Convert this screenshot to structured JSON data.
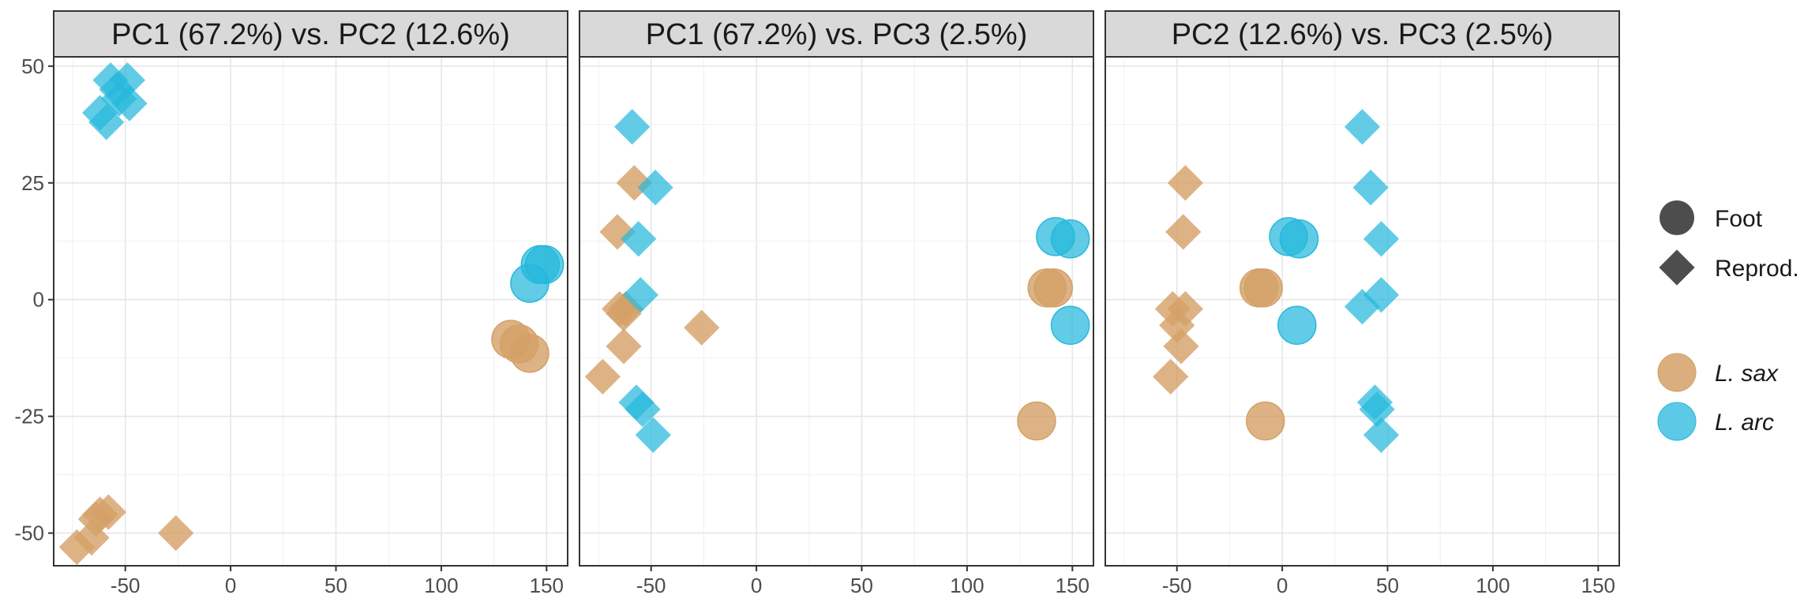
{
  "colors": {
    "L_sax": "#D4A066",
    "L_arc": "#26B8DD",
    "shape_key": "#4d4d4d"
  },
  "legend": {
    "shape": [
      {
        "label": "Foot",
        "shape": "circle"
      },
      {
        "label": "Reprod.",
        "shape": "diamond"
      }
    ],
    "species": [
      {
        "label": "L. sax",
        "color_key": "L_sax"
      },
      {
        "label": "L. arc",
        "color_key": "L_arc"
      }
    ]
  },
  "chart_data": [
    {
      "type": "scatter",
      "title": "PC1 (67.2%) vs. PC2 (12.6%)",
      "xlim": [
        -84,
        160
      ],
      "ylim": [
        -57,
        52
      ],
      "xticks": [
        -50,
        0,
        50,
        100,
        150
      ],
      "yticks": [
        -50,
        -25,
        0,
        25,
        50
      ],
      "grid": true,
      "series": [
        {
          "name": "L. sax",
          "tissue": "Foot",
          "points": [
            [
              133,
              -8.5
            ],
            [
              137,
              -9.5
            ],
            [
              142,
              -11.5
            ]
          ]
        },
        {
          "name": "L. sax",
          "tissue": "Reprod.",
          "points": [
            [
              -26,
              -50
            ],
            [
              -58,
              -45.5
            ],
            [
              -62,
              -46
            ],
            [
              -64,
              -47
            ],
            [
              -66,
              -51
            ],
            [
              -73,
              -53
            ]
          ]
        },
        {
          "name": "L. arc",
          "tissue": "Foot",
          "points": [
            [
              142,
              3.5
            ],
            [
              147,
              7.5
            ],
            [
              149,
              7.5
            ]
          ]
        },
        {
          "name": "L. arc",
          "tissue": "Reprod.",
          "points": [
            [
              -57,
              47
            ],
            [
              -54,
              45
            ],
            [
              -49,
              47
            ],
            [
              -53,
              43
            ],
            [
              -48,
              42
            ],
            [
              -59,
              38
            ],
            [
              -62,
              40
            ]
          ]
        }
      ]
    },
    {
      "type": "scatter",
      "title": "PC1 (67.2%) vs. PC3 (2.5%)",
      "xlim": [
        -84,
        160
      ],
      "ylim": [
        -57,
        52
      ],
      "xticks": [
        -50,
        0,
        50,
        100,
        150
      ],
      "yticks": [
        -50,
        -25,
        0,
        25,
        50
      ],
      "grid": true,
      "series": [
        {
          "name": "L. sax",
          "tissue": "Foot",
          "points": [
            [
              138,
              2.5
            ],
            [
              141,
              2.5
            ],
            [
              133,
              -26
            ]
          ]
        },
        {
          "name": "L. sax",
          "tissue": "Reprod.",
          "points": [
            [
              -58,
              25
            ],
            [
              -66,
              14.5
            ],
            [
              -65,
              -2
            ],
            [
              -62,
              -2
            ],
            [
              -63,
              -3
            ],
            [
              -26,
              -6
            ],
            [
              -63,
              -10
            ],
            [
              -73,
              -16.5
            ]
          ]
        },
        {
          "name": "L. arc",
          "tissue": "Foot",
          "points": [
            [
              142,
              13.5
            ],
            [
              149,
              13
            ],
            [
              149,
              -5.5
            ]
          ]
        },
        {
          "name": "L. arc",
          "tissue": "Reprod.",
          "points": [
            [
              -59,
              37
            ],
            [
              -48,
              24
            ],
            [
              -56,
              13
            ],
            [
              -55,
              1
            ],
            [
              -57,
              -22
            ],
            [
              -54,
              -23.5
            ],
            [
              -49,
              -29
            ]
          ]
        }
      ]
    },
    {
      "type": "scatter",
      "title": "PC2 (12.6%) vs. PC3 (2.5%)",
      "xlim": [
        -84,
        160
      ],
      "ylim": [
        -57,
        52
      ],
      "xticks": [
        -50,
        0,
        50,
        100,
        150
      ],
      "yticks": [
        -50,
        -25,
        0,
        25,
        50
      ],
      "grid": true,
      "series": [
        {
          "name": "L. sax",
          "tissue": "Foot",
          "points": [
            [
              -11,
              2.5
            ],
            [
              -9,
              2.5
            ],
            [
              -8,
              -26
            ]
          ]
        },
        {
          "name": "L. sax",
          "tissue": "Reprod.",
          "points": [
            [
              -46,
              25
            ],
            [
              -47,
              14.5
            ],
            [
              -52,
              -2
            ],
            [
              -46,
              -2
            ],
            [
              -50,
              -5.5
            ],
            [
              -48,
              -10
            ],
            [
              -53,
              -16.5
            ]
          ]
        },
        {
          "name": "L. arc",
          "tissue": "Foot",
          "points": [
            [
              3,
              13.5
            ],
            [
              8,
              13
            ],
            [
              7,
              -5.5
            ]
          ]
        },
        {
          "name": "L. arc",
          "tissue": "Reprod.",
          "points": [
            [
              38,
              37
            ],
            [
              42,
              24
            ],
            [
              47,
              13
            ],
            [
              47,
              1
            ],
            [
              38,
              -1.5
            ],
            [
              44,
              -22
            ],
            [
              45,
              -23.5
            ],
            [
              47,
              -29
            ]
          ]
        }
      ]
    }
  ]
}
